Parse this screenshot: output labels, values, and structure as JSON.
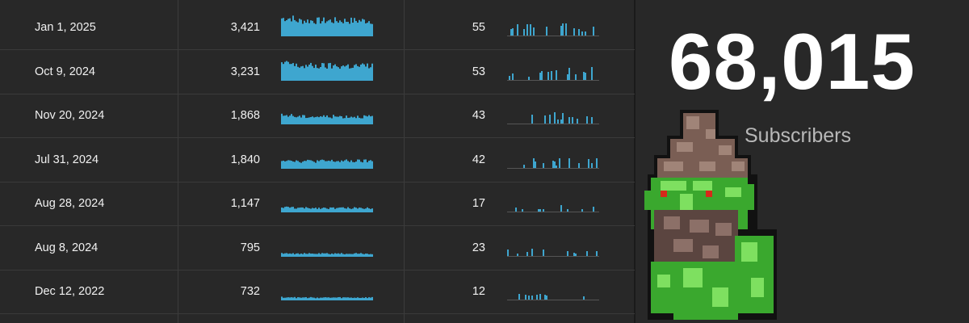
{
  "rows": [
    {
      "date": "Jan 1, 2025",
      "views": "3,421",
      "subs": "55",
      "views_level": 0.9,
      "subs_level": 0.55
    },
    {
      "date": "Oct 9, 2024",
      "views": "3,231",
      "subs": "53",
      "views_level": 0.85,
      "subs_level": 0.53
    },
    {
      "date": "Nov 20, 2024",
      "views": "1,868",
      "subs": "43",
      "views_level": 0.45,
      "subs_level": 0.43
    },
    {
      "date": "Jul 31, 2024",
      "views": "1,840",
      "subs": "42",
      "views_level": 0.44,
      "subs_level": 0.42
    },
    {
      "date": "Aug 28, 2024",
      "views": "1,147",
      "subs": "17",
      "views_level": 0.25,
      "subs_level": 0.17
    },
    {
      "date": "Aug 8, 2024",
      "views": "795",
      "subs": "23",
      "views_level": 0.18,
      "subs_level": 0.23
    },
    {
      "date": "Dec 12, 2022",
      "views": "732",
      "subs": "12",
      "views_level": 0.16,
      "subs_level": 0.12
    }
  ],
  "subscriber_count": "68,015",
  "subscriber_label": "Subscribers",
  "colors": {
    "sparkline": "#3ea6cf",
    "background": "#282828",
    "count": "#ffffff",
    "label": "#b8b8b8"
  },
  "mascot_icon": "green-orc-pixel-mascot"
}
